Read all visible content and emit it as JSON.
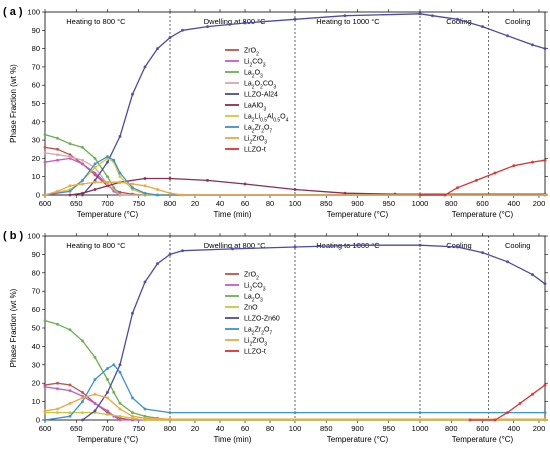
{
  "chart_data": [
    {
      "type": "line",
      "panel_tag": "( a )",
      "ylabel": "Phase Fraction (wt %)",
      "ylim": [
        0,
        100
      ],
      "y_ticks": [
        "0",
        "10",
        "20",
        "30",
        "40",
        "50",
        "60",
        "70",
        "80",
        "90",
        "100"
      ],
      "segments": [
        {
          "xlabel": "Temperature (°C)",
          "ticks": [
            "600",
            "650",
            "700",
            "750",
            "800"
          ]
        },
        {
          "xlabel": "Time (min)",
          "ticks": [
            "20",
            "40",
            "60",
            "80",
            "100"
          ]
        },
        {
          "xlabel": "Temperature (°C)",
          "ticks": [
            "850",
            "900",
            "950",
            "1000"
          ]
        },
        {
          "xlabel": "Temperature (°C)",
          "ticks": [
            "800",
            "600",
            "400",
            "200"
          ]
        }
      ],
      "regions": [
        "Heating to 800 °C",
        "Dwelling at 800 °C",
        "Heating to 1000 °C",
        "Cooling",
        "Cooling"
      ],
      "series": [
        {
          "name": "ZrO2",
          "color": "#c0504d",
          "values": [
            [
              0,
              26
            ],
            [
              10,
              25
            ],
            [
              20,
              22
            ],
            [
              30,
              17
            ],
            [
              40,
              11
            ],
            [
              50,
              5
            ],
            [
              60,
              1.5
            ],
            [
              70,
              0.5
            ],
            [
              80,
              0
            ],
            [
              400,
              0
            ]
          ]
        },
        {
          "name": "Li2CO3",
          "color": "#c45cd0",
          "values": [
            [
              0,
              18
            ],
            [
              10,
              19
            ],
            [
              20,
              20
            ],
            [
              30,
              17
            ],
            [
              40,
              12
            ],
            [
              50,
              6
            ],
            [
              55,
              2
            ],
            [
              60,
              0
            ],
            [
              400,
              0
            ]
          ]
        },
        {
          "name": "La2O3",
          "color": "#6ab04c",
          "values": [
            [
              0,
              33
            ],
            [
              10,
              31
            ],
            [
              20,
              28
            ],
            [
              30,
              26
            ],
            [
              40,
              20
            ],
            [
              50,
              10
            ],
            [
              55,
              4
            ],
            [
              60,
              0
            ],
            [
              400,
              0
            ]
          ]
        },
        {
          "name": "La2O2CO3",
          "color": "#d8a8a8",
          "values": [
            [
              0,
              23
            ],
            [
              10,
              22
            ],
            [
              20,
              21
            ],
            [
              30,
              19
            ],
            [
              40,
              15
            ],
            [
              50,
              6
            ],
            [
              60,
              0
            ],
            [
              400,
              0
            ]
          ]
        },
        {
          "name": "LLZO-Al24",
          "color": "#4b4ba8",
          "values": [
            [
              30,
              0
            ],
            [
              40,
              8
            ],
            [
              50,
              18
            ],
            [
              60,
              32
            ],
            [
              70,
              55
            ],
            [
              80,
              70
            ],
            [
              90,
              80
            ],
            [
              100,
              86
            ],
            [
              110,
              90
            ],
            [
              130,
              92
            ],
            [
              160,
              94
            ],
            [
              200,
              96
            ],
            [
              240,
              98
            ],
            [
              300,
              99
            ],
            [
              310,
              98
            ],
            [
              330,
              96
            ],
            [
              350,
              92
            ],
            [
              370,
              87
            ],
            [
              390,
              82
            ],
            [
              400,
              80
            ]
          ]
        },
        {
          "name": "LaAlO3",
          "color": "#8a2c55",
          "values": [
            [
              0,
              0
            ],
            [
              20,
              0
            ],
            [
              30,
              1
            ],
            [
              40,
              3
            ],
            [
              60,
              7
            ],
            [
              80,
              9
            ],
            [
              100,
              9
            ],
            [
              130,
              8
            ],
            [
              160,
              6
            ],
            [
              200,
              3
            ],
            [
              240,
              1
            ],
            [
              280,
              0.5
            ],
            [
              400,
              0.5
            ]
          ]
        },
        {
          "name": "La2Li0.5Al0.5O4",
          "color": "#d5c63a",
          "values": [
            [
              0,
              0
            ],
            [
              20,
              3
            ],
            [
              30,
              8
            ],
            [
              40,
              15
            ],
            [
              50,
              20
            ],
            [
              55,
              18
            ],
            [
              60,
              10
            ],
            [
              70,
              3
            ],
            [
              80,
              0.5
            ],
            [
              90,
              0
            ],
            [
              400,
              0
            ]
          ]
        },
        {
          "name": "La2Zr2O7",
          "color": "#3b92cf",
          "values": [
            [
              0,
              0
            ],
            [
              20,
              2
            ],
            [
              30,
              8
            ],
            [
              40,
              17
            ],
            [
              50,
              21
            ],
            [
              55,
              19
            ],
            [
              60,
              12
            ],
            [
              70,
              4
            ],
            [
              80,
              1
            ],
            [
              90,
              0
            ],
            [
              400,
              0
            ]
          ]
        },
        {
          "name": "Li2ZrO3",
          "color": "#f0a542",
          "values": [
            [
              0,
              0
            ],
            [
              10,
              2
            ],
            [
              20,
              5
            ],
            [
              30,
              6
            ],
            [
              40,
              7
            ],
            [
              50,
              7
            ],
            [
              60,
              7
            ],
            [
              70,
              6
            ],
            [
              80,
              5
            ],
            [
              90,
              3
            ],
            [
              100,
              1
            ],
            [
              110,
              0
            ],
            [
              400,
              0
            ]
          ]
        },
        {
          "name": "LLZO-t",
          "color": "#e03030",
          "values": [
            [
              300,
              0
            ],
            [
              320,
              0
            ],
            [
              330,
              4
            ],
            [
              345,
              8
            ],
            [
              360,
              12
            ],
            [
              375,
              16
            ],
            [
              390,
              18
            ],
            [
              400,
              19
            ]
          ]
        }
      ]
    },
    {
      "type": "line",
      "panel_tag": "( b )",
      "ylabel": "Phase Fraction (wt %)",
      "ylim": [
        0,
        100
      ],
      "y_ticks": [
        "0",
        "10",
        "20",
        "30",
        "40",
        "50",
        "60",
        "70",
        "80",
        "90",
        "100"
      ],
      "segments": [
        {
          "xlabel": "Temperature (°C)",
          "ticks": [
            "600",
            "650",
            "700",
            "750",
            "800"
          ]
        },
        {
          "xlabel": "Time (min)",
          "ticks": [
            "20",
            "40",
            "60",
            "80",
            "100"
          ]
        },
        {
          "xlabel": "Temperature (°C)",
          "ticks": [
            "850",
            "900",
            "950",
            "1000"
          ]
        },
        {
          "xlabel": "Temperature (°C)",
          "ticks": [
            "800",
            "600",
            "400",
            "200"
          ]
        }
      ],
      "regions": [
        "Heating to 800 °C",
        "Dwelling at 800 °C",
        "Heating to 1000 °C",
        "Cooling",
        "Cooling"
      ],
      "series": [
        {
          "name": "ZrO2",
          "color": "#c0504d",
          "values": [
            [
              0,
              19
            ],
            [
              10,
              20
            ],
            [
              20,
              19
            ],
            [
              30,
              15
            ],
            [
              40,
              9
            ],
            [
              50,
              4
            ],
            [
              60,
              1
            ],
            [
              70,
              0
            ],
            [
              400,
              0
            ]
          ]
        },
        {
          "name": "Li2CO3",
          "color": "#c45cd0",
          "values": [
            [
              0,
              18
            ],
            [
              10,
              17
            ],
            [
              20,
              16
            ],
            [
              30,
              13
            ],
            [
              40,
              9
            ],
            [
              50,
              5
            ],
            [
              55,
              2
            ],
            [
              60,
              0
            ],
            [
              400,
              0
            ]
          ]
        },
        {
          "name": "La2O3",
          "color": "#6ab04c",
          "values": [
            [
              0,
              54
            ],
            [
              10,
              52
            ],
            [
              20,
              49
            ],
            [
              30,
              43
            ],
            [
              40,
              34
            ],
            [
              50,
              22
            ],
            [
              55,
              15
            ],
            [
              60,
              9
            ],
            [
              70,
              4
            ],
            [
              80,
              2
            ],
            [
              90,
              1
            ],
            [
              100,
              0
            ],
            [
              400,
              0
            ]
          ]
        },
        {
          "name": "ZnO",
          "color": "#c8c83a",
          "values": [
            [
              0,
              4
            ],
            [
              10,
              4
            ],
            [
              20,
              4
            ],
            [
              30,
              4
            ],
            [
              40,
              4
            ],
            [
              50,
              3
            ],
            [
              60,
              2
            ],
            [
              70,
              1
            ],
            [
              80,
              0
            ],
            [
              400,
              0
            ]
          ]
        },
        {
          "name": "LLZO-Zn60",
          "color": "#4b4ba8",
          "values": [
            [
              30,
              0
            ],
            [
              40,
              5
            ],
            [
              50,
              15
            ],
            [
              60,
              30
            ],
            [
              70,
              58
            ],
            [
              80,
              75
            ],
            [
              90,
              85
            ],
            [
              100,
              90
            ],
            [
              110,
              92
            ],
            [
              150,
              93
            ],
            [
              200,
              94
            ],
            [
              250,
              95
            ],
            [
              300,
              95
            ],
            [
              330,
              94
            ],
            [
              350,
              91
            ],
            [
              370,
              86
            ],
            [
              390,
              79
            ],
            [
              400,
              74
            ]
          ]
        },
        {
          "name": "La2Zr2O7",
          "color": "#3b92cf",
          "values": [
            [
              0,
              0
            ],
            [
              20,
              2
            ],
            [
              30,
              10
            ],
            [
              40,
              22
            ],
            [
              50,
              28
            ],
            [
              55,
              30
            ],
            [
              60,
              26
            ],
            [
              70,
              12
            ],
            [
              80,
              6
            ],
            [
              100,
              4
            ],
            [
              200,
              4
            ],
            [
              300,
              4
            ],
            [
              400,
              4
            ]
          ]
        },
        {
          "name": "Li2ZrO3",
          "color": "#f0a542",
          "values": [
            [
              0,
              5
            ],
            [
              10,
              6
            ],
            [
              20,
              9
            ],
            [
              30,
              12
            ],
            [
              40,
              14
            ],
            [
              50,
              12
            ],
            [
              60,
              6
            ],
            [
              70,
              2
            ],
            [
              80,
              1
            ],
            [
              100,
              0.5
            ],
            [
              400,
              0.5
            ]
          ]
        },
        {
          "name": "LLZO-t",
          "color": "#e03030",
          "values": [
            [
              340,
              0
            ],
            [
              360,
              0
            ],
            [
              370,
              4
            ],
            [
              380,
              9
            ],
            [
              390,
              14
            ],
            [
              400,
              19
            ]
          ]
        }
      ]
    }
  ]
}
